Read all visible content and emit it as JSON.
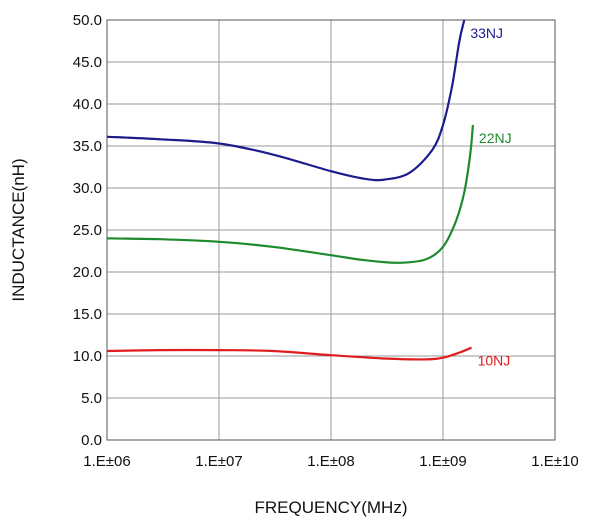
{
  "chart_data": {
    "type": "line",
    "title": "",
    "xlabel": "FREQUENCY(MHz)",
    "ylabel": "INDUCTANCE(nH)",
    "x_scale": "log",
    "xlim": [
      1000000,
      10000000000
    ],
    "ylim": [
      0,
      50
    ],
    "x_tick_labels": [
      "1.E±06",
      "1.E±07",
      "1.E±08",
      "1.E±09",
      "1.E±10"
    ],
    "y_tick_labels": [
      "0.0",
      "5.0",
      "10.0",
      "15.0",
      "20.0",
      "25.0",
      "30.0",
      "35.0",
      "40.0",
      "45.0",
      "50.0"
    ],
    "grid": true,
    "legend": "inline labels at curve ends",
    "series": [
      {
        "name": "33NJ",
        "color": "#1c1c8c",
        "x": [
          1000000,
          3000000,
          10000000,
          30000000,
          100000000,
          200000000,
          300000000,
          500000000,
          800000000,
          1000000000,
          1200000000,
          1400000000,
          1550000000
        ],
        "y": [
          36.1,
          35.8,
          35.3,
          34.0,
          32.0,
          31.1,
          31.0,
          31.8,
          34.5,
          37.5,
          42.0,
          47.5,
          50.0
        ]
      },
      {
        "name": "22NJ",
        "color": "#1e8a2e",
        "x": [
          1000000,
          3000000,
          10000000,
          30000000,
          100000000,
          200000000,
          400000000,
          700000000,
          1000000000,
          1300000000,
          1550000000,
          1750000000,
          1850000000
        ],
        "y": [
          24.0,
          23.9,
          23.6,
          23.0,
          22.0,
          21.4,
          21.1,
          21.5,
          23.0,
          26.0,
          29.5,
          34.0,
          37.5
        ]
      },
      {
        "name": "10NJ",
        "color": "#e01c1c",
        "x": [
          1000000,
          3000000,
          10000000,
          30000000,
          100000000,
          300000000,
          700000000,
          1000000000,
          1400000000,
          1800000000
        ],
        "y": [
          10.6,
          10.7,
          10.7,
          10.6,
          10.1,
          9.7,
          9.6,
          9.8,
          10.4,
          11.0
        ]
      }
    ]
  }
}
